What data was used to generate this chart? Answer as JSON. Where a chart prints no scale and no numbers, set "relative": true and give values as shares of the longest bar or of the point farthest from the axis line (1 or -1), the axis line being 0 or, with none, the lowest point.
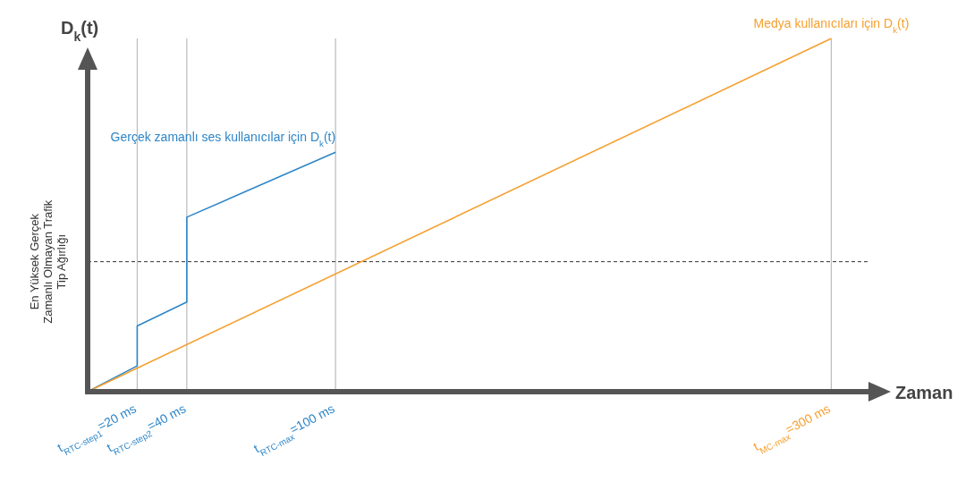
{
  "chart_data": {
    "type": "line",
    "relative": true,
    "xlabel": "Zaman",
    "ylabel": "D$_{k}$(t)",
    "xlim": [
      0,
      315
    ],
    "xticks": [
      {
        "value": 20,
        "label": "t$_{RTC-step1}$=20 ms"
      },
      {
        "value": 40,
        "label": "t$_{RTC-step2}$=40 ms"
      },
      {
        "value": 100,
        "label": "t$_{RTC-max}$=100 ms"
      },
      {
        "value": 300,
        "label": "t$_{MC-max}$=300 ms"
      }
    ],
    "grid": "x",
    "marker": "none",
    "line_style": "solid",
    "ref_lines": [
      {
        "axis": "y",
        "value": 0.368,
        "label": "En Yüksek Gerçek Zamanlı Olmayan Trafik Tip Ağırlığı",
        "color": "#333333",
        "line_style": "dashed"
      }
    ],
    "series": [
      {
        "name": "Gerçek zamanlı ses kullanıcılar için D$_{k}$(t)",
        "color": "#2e86c8",
        "x": [
          0,
          20,
          20,
          40,
          40,
          100
        ],
        "values": [
          0,
          0.073,
          0.186,
          0.254,
          0.494,
          0.678
        ]
      },
      {
        "name": "Medya kullanıcıları için D$_{k}$(t)",
        "color": "#f5a030",
        "x": [
          0,
          300
        ],
        "values": [
          0,
          1
        ]
      }
    ]
  }
}
